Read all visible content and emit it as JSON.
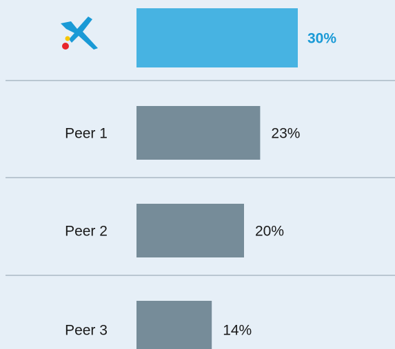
{
  "chart_data": {
    "type": "bar",
    "orientation": "horizontal",
    "categories": [
      null,
      "Peer 1",
      "Peer 2",
      "Peer 3"
    ],
    "values": [
      30,
      23,
      20,
      14
    ],
    "value_labels": [
      "30%",
      "23%",
      "20%",
      "14%"
    ],
    "colors": [
      "#47b3e2",
      "#768c99",
      "#768c99",
      "#768c99"
    ],
    "highlight_label_color": "#1a9ad6"
  }
}
